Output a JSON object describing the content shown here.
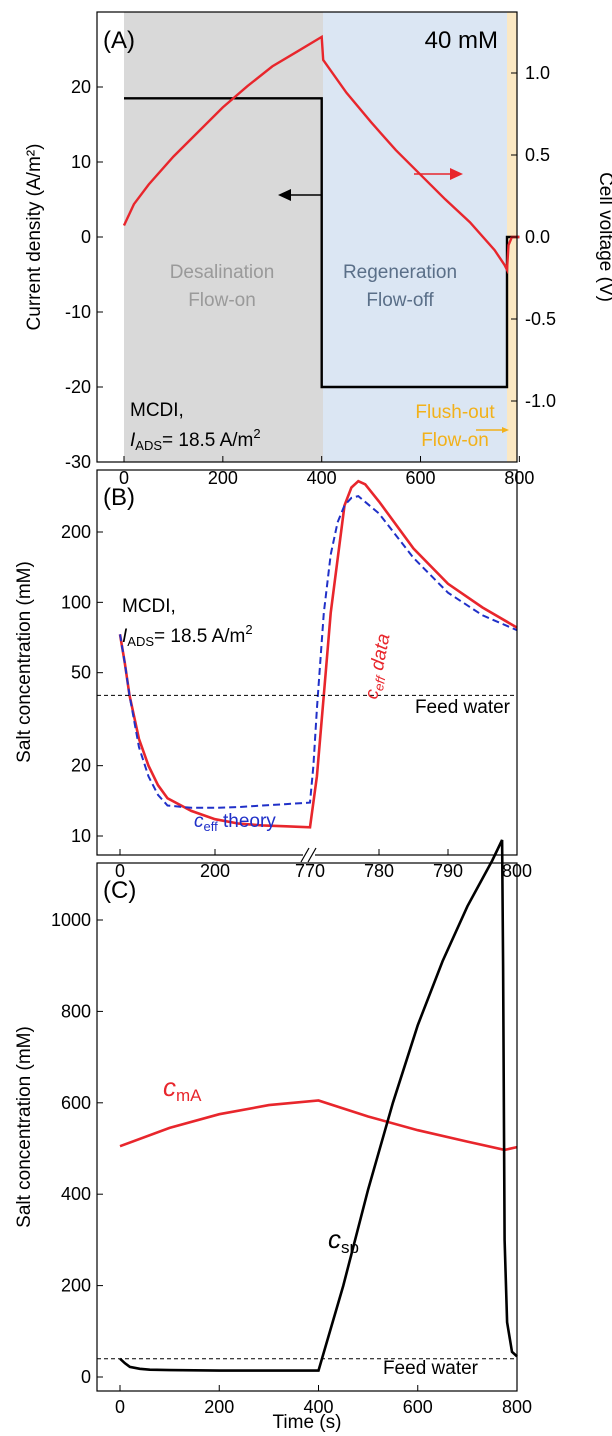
{
  "colors": {
    "desal_bg": "#d9d9d9",
    "regen_bg": "#dbe6f3",
    "flush_bg": "#fbe8c3",
    "red": "#e8262c",
    "black": "#000000",
    "blue": "#2030c8",
    "gray_text": "#9a9a9a",
    "slate_text": "#5a6f88",
    "orange_text": "#f2b11a"
  },
  "chart_data": [
    {
      "panel": "A",
      "type": "line",
      "label": "(A)",
      "annotation_conc": "40 mM",
      "xlim": [
        0,
        800
      ],
      "x_ticks": [
        "0",
        "200",
        "400",
        "600",
        "800"
      ],
      "ylabel_left": "Current density (A/m²)",
      "ylim_left": [
        -30,
        30
      ],
      "y_ticks_left": [
        "-30",
        "-20",
        "-10",
        "0",
        "10",
        "20"
      ],
      "ylabel_right": "Cell voltage (V)",
      "ylim_right": [
        -1.35,
        1.35
      ],
      "y_ticks_right": [
        "-1.0",
        "-0.5",
        "0.0",
        "0.5",
        "1.0"
      ],
      "phases": [
        {
          "name": "Desalination",
          "sub": "Flow-on",
          "x_range": [
            0,
            400
          ]
        },
        {
          "name": "Regeneration",
          "sub": "Flow-off",
          "x_range": [
            400,
            775
          ]
        },
        {
          "name": "Flush-out",
          "sub": "Flow-on",
          "x_range": [
            775,
            800
          ]
        }
      ],
      "mode_label": "MCDI,",
      "iads_prefix": "I",
      "iads_sub": "ADS",
      "iads_rest": "= 18.5 A/m",
      "iads_sup": "2",
      "series": [
        {
          "axis": "left",
          "x": [
            0,
            400,
            400,
            775,
            775,
            800
          ],
          "y": [
            18.5,
            18.5,
            -20,
            -20,
            0,
            0
          ]
        },
        {
          "axis": "right",
          "x": [
            0,
            20,
            50,
            100,
            150,
            200,
            250,
            300,
            350,
            400,
            403,
            450,
            500,
            550,
            600,
            650,
            700,
            750,
            770,
            775,
            778,
            785,
            790,
            800
          ],
          "y": [
            0.07,
            0.2,
            0.32,
            0.49,
            0.64,
            0.79,
            0.92,
            1.04,
            1.13,
            1.22,
            1.08,
            0.88,
            0.7,
            0.53,
            0.38,
            0.23,
            0.09,
            -0.08,
            -0.17,
            -0.2,
            -0.05,
            0.0,
            0.0,
            0.0
          ]
        }
      ]
    },
    {
      "panel": "B",
      "type": "line",
      "label": "(B)",
      "yscale": "log",
      "ylabel": "Salt concentration (mM)",
      "ylim": [
        8,
        400
      ],
      "y_ticks": [
        "10",
        "20",
        "50",
        "100",
        "200"
      ],
      "x_ticks": [
        "0",
        "200",
        "770",
        "780",
        "790",
        "800"
      ],
      "axis_break": "770",
      "x_segments": [
        {
          "x": [
            0,
            400
          ]
        },
        {
          "x": [
            770,
            800
          ]
        }
      ],
      "mode_label": "MCDI,",
      "iads_prefix": "I",
      "iads_sub": "ADS",
      "iads_rest": "= 18.5 A/m",
      "iads_sup": "2",
      "feed_label": "Feed water",
      "feed_value": 40,
      "data_label_c": "c",
      "data_label_sub": "eff",
      "data_label_rest": " data",
      "theory_label_c": "c",
      "theory_label_sub": "eff",
      "theory_label_rest": " theory",
      "series": [
        {
          "style": "solid",
          "color_key": "red",
          "x": [
            0,
            10,
            20,
            40,
            60,
            80,
            100,
            150,
            200,
            250,
            300,
            350,
            400,
            770,
            771,
            772,
            773,
            775,
            776,
            777,
            778,
            780,
            785,
            790,
            795,
            800
          ],
          "y": [
            73,
            55,
            40,
            26,
            20,
            16.5,
            14.5,
            12.8,
            11.8,
            11.3,
            11.1,
            11.0,
            10.9,
            10.9,
            18,
            40,
            90,
            260,
            310,
            330,
            320,
            270,
            170,
            120,
            95,
            78
          ]
        },
        {
          "style": "dashed",
          "color_key": "blue",
          "x": [
            0,
            10,
            20,
            40,
            60,
            80,
            100,
            150,
            200,
            250,
            300,
            350,
            400,
            770,
            770.5,
            771,
            772,
            773,
            774,
            775,
            776,
            777,
            780,
            785,
            790,
            795,
            800
          ],
          "y": [
            73,
            55,
            40,
            24,
            18,
            15,
            13.5,
            13.2,
            13.2,
            13.3,
            13.5,
            13.7,
            13.9,
            13.9,
            20,
            35,
            90,
            160,
            220,
            260,
            280,
            285,
            240,
            155,
            110,
            88,
            76
          ]
        }
      ]
    },
    {
      "panel": "C",
      "type": "line",
      "label": "(C)",
      "xlabel": "Time (s)",
      "ylabel": "Salt concentration (mM)",
      "xlim": [
        0,
        800
      ],
      "ylim": [
        0,
        1180
      ],
      "x_ticks": [
        "0",
        "200",
        "400",
        "600",
        "800"
      ],
      "y_ticks": [
        "0",
        "200",
        "400",
        "600",
        "800",
        "1000"
      ],
      "feed_label": "Feed water",
      "feed_value": 40,
      "cma_c": "c",
      "cma_sub": "mA",
      "csp_c": "c",
      "csp_sub": "sp",
      "series": [
        {
          "name": "c_mA",
          "color_key": "red",
          "x": [
            0,
            100,
            200,
            300,
            400,
            500,
            600,
            700,
            775,
            800
          ],
          "y": [
            505,
            545,
            575,
            595,
            605,
            570,
            540,
            515,
            497,
            503
          ]
        },
        {
          "name": "c_sp",
          "color_key": "black",
          "x": [
            0,
            10,
            20,
            40,
            60,
            100,
            200,
            300,
            400,
            450,
            500,
            550,
            600,
            650,
            700,
            750,
            770,
            772,
            775,
            780,
            790,
            800
          ],
          "y": [
            40,
            30,
            22,
            18,
            16,
            15,
            14,
            14,
            14,
            200,
            410,
            600,
            770,
            910,
            1030,
            1130,
            1175,
            900,
            300,
            120,
            55,
            45
          ]
        }
      ]
    }
  ]
}
